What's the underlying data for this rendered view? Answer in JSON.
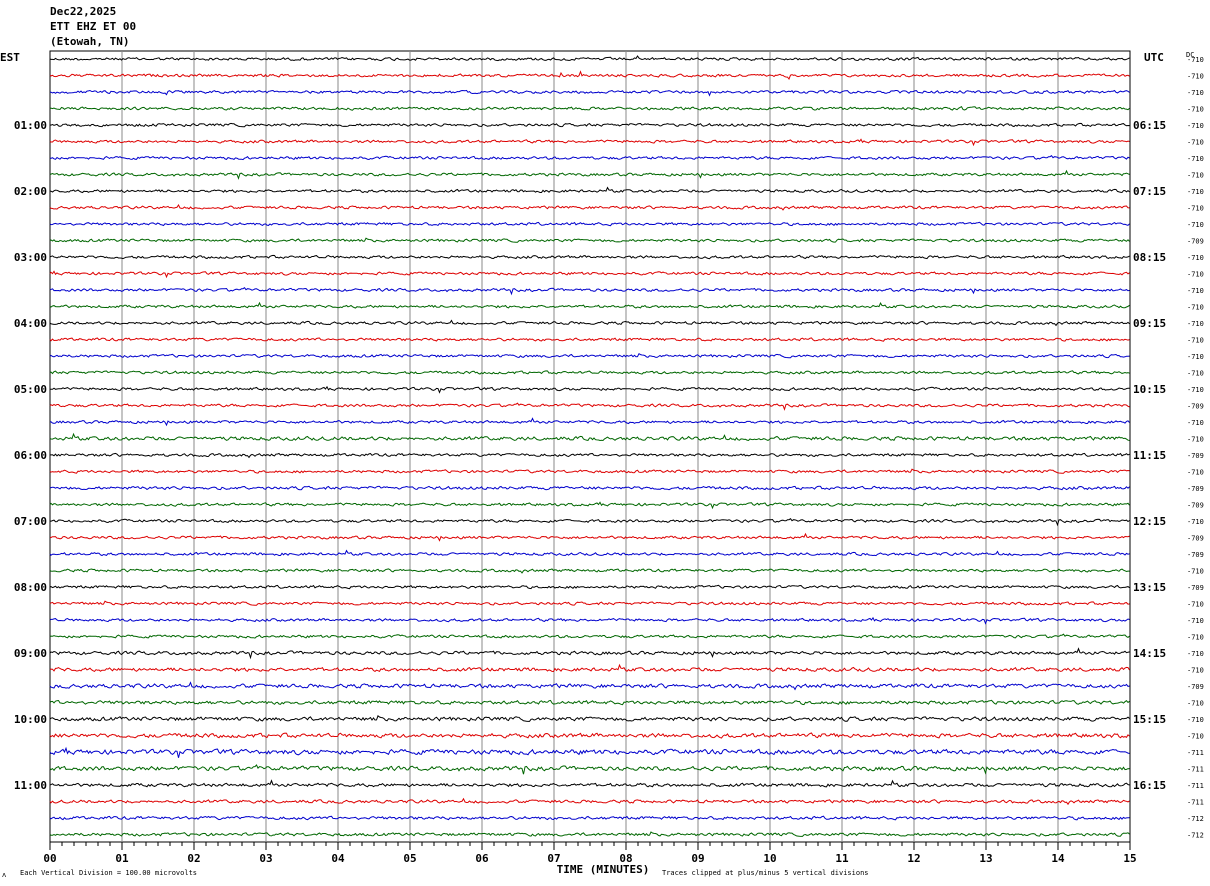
{
  "header": {
    "date": "Dec22,2025",
    "station": "ETT EHZ ET 00",
    "location": "(Etowah, TN)"
  },
  "left_zone_label": "EST",
  "right_zone_label": "UTC",
  "dc_label": "DC",
  "footer": {
    "scale_note": "Each Vertical Division =  100.00 microvolts",
    "clip_note": "Traces clipped at plus/minus 5 vertical divisions",
    "corner_mark": "ᴧ"
  },
  "colors": {
    "cycle": [
      "#000000",
      "#dd0000",
      "#0000cc",
      "#006600"
    ],
    "grid": "#888888",
    "frame": "#000000"
  },
  "chart_data": {
    "type": "line",
    "title": "",
    "xlabel": "TIME (MINUTES)",
    "ylabel": "",
    "xlim": [
      0,
      15
    ],
    "x_ticks": [
      "00",
      "01",
      "02",
      "03",
      "04",
      "05",
      "06",
      "07",
      "08",
      "09",
      "10",
      "11",
      "12",
      "13",
      "14",
      "15"
    ],
    "grid": true,
    "left_hour_labels": [
      "",
      "01:00",
      "02:00",
      "03:00",
      "04:00",
      "05:00",
      "06:00",
      "07:00",
      "08:00",
      "09:00",
      "10:00",
      "11:00"
    ],
    "right_hour_labels": [
      "",
      "06:15",
      "07:15",
      "08:15",
      "09:15",
      "10:15",
      "11:15",
      "12:15",
      "13:15",
      "14:15",
      "15:15",
      "16:15"
    ],
    "dc_offsets": [
      "-710",
      "-710",
      "-710",
      "-710",
      "-710",
      "-710",
      "-710",
      "-710",
      "-710",
      "-710",
      "-710",
      "-709",
      "-710",
      "-710",
      "-710",
      "-710",
      "-710",
      "-710",
      "-710",
      "-710",
      "-710",
      "-709",
      "-710",
      "-710",
      "-709",
      "-710",
      "-709",
      "-709",
      "-710",
      "-709",
      "-709",
      "-710",
      "-709",
      "-710",
      "-710",
      "-710",
      "-710",
      "-710",
      "-709",
      "-710",
      "-710",
      "-710",
      "-711",
      "-711",
      "-711",
      "-711",
      "-712",
      "-712"
    ],
    "trace_activity": [
      1.0,
      1.0,
      1.0,
      1.0,
      1.0,
      1.0,
      1.0,
      1.0,
      1.0,
      1.0,
      1.0,
      1.0,
      1.0,
      1.0,
      1.0,
      1.0,
      1.0,
      1.0,
      1.0,
      1.0,
      1.0,
      1.0,
      1.0,
      1.3,
      1.0,
      1.0,
      1.1,
      1.0,
      1.0,
      1.0,
      1.0,
      1.0,
      1.0,
      1.0,
      1.0,
      1.0,
      1.2,
      1.3,
      1.4,
      1.3,
      1.4,
      1.5,
      1.7,
      1.5,
      1.2,
      1.1,
      1.1,
      1.1
    ]
  }
}
